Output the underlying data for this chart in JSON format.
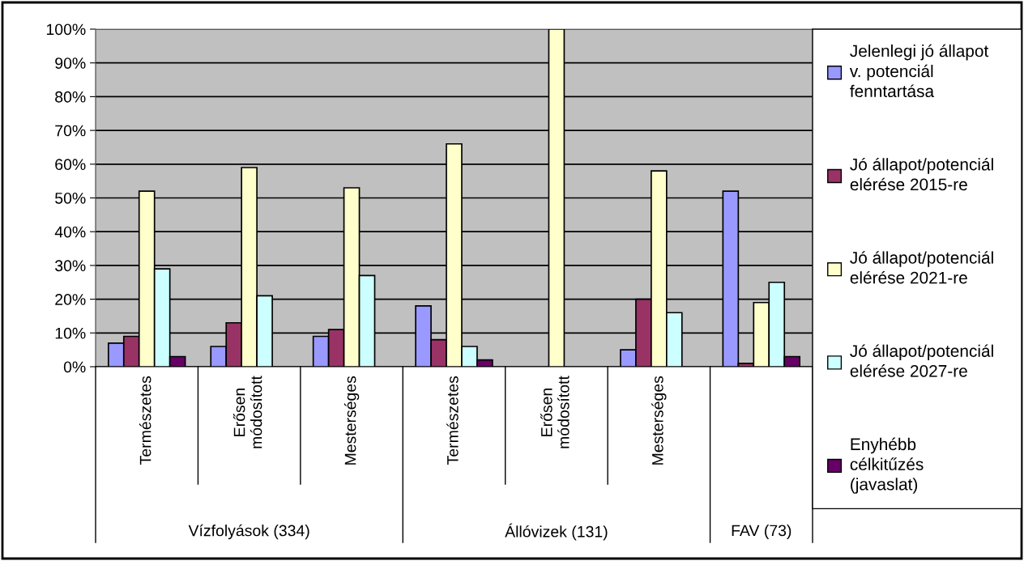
{
  "chart_data": {
    "type": "bar",
    "categories": [
      "Természetes",
      "Erősen\nmódosított",
      "Mesterséges",
      "Természetes",
      "Erősen\nmódosított",
      "Mesterséges",
      null
    ],
    "series": [
      {
        "name": "Jelenlegi jó állapot\nv. potenciál\nfenntartása",
        "color": "#9999ff",
        "values": [
          7,
          6,
          9,
          18,
          null,
          5,
          52
        ]
      },
      {
        "name": "Jó állapot/potenciál\nelérése 2015-re",
        "color": "#993366",
        "values": [
          9,
          13,
          11,
          8,
          null,
          20,
          1
        ]
      },
      {
        "name": "Jó állapot/potenciál\nelérése 2021-re",
        "color": "#ffffcc",
        "values": [
          52,
          59,
          53,
          66,
          100,
          58,
          19
        ]
      },
      {
        "name": "Jó állapot/potenciál\nelérése 2027-re",
        "color": "#ccffff",
        "values": [
          29,
          21,
          27,
          6,
          null,
          16,
          25
        ]
      },
      {
        "name": "Enyhébb\ncélkitűzés\n(javaslat)",
        "color": "#660066",
        "values": [
          3,
          null,
          null,
          2,
          null,
          null,
          3
        ]
      }
    ],
    "annotations": [
      "Vízfolyások (334)",
      "Állóvizek (131)",
      "FAV (73)"
    ],
    "ylim": [
      0,
      100
    ],
    "yticks": [
      {
        "value": 0,
        "label": "0%"
      },
      {
        "value": 10,
        "label": "10%"
      },
      {
        "value": 20,
        "label": "20%"
      },
      {
        "value": 30,
        "label": "30%"
      },
      {
        "value": 40,
        "label": "40%"
      },
      {
        "value": 50,
        "label": "50%"
      },
      {
        "value": 60,
        "label": "60%"
      },
      {
        "value": 70,
        "label": "70%"
      },
      {
        "value": 80,
        "label": "80%"
      },
      {
        "value": 90,
        "label": "90%"
      },
      {
        "value": 100,
        "label": "100%"
      }
    ],
    "grid": "y",
    "legend": "right"
  }
}
